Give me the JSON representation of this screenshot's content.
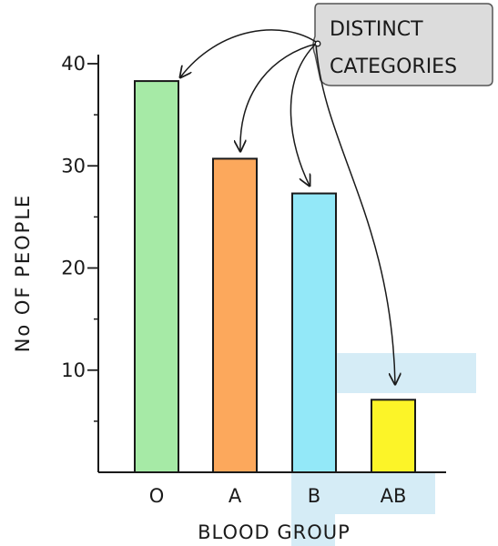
{
  "chart_data": {
    "type": "bar",
    "categories": [
      "O",
      "A",
      "B",
      "AB"
    ],
    "values": [
      38.3,
      30.7,
      27.3,
      7.1
    ],
    "colors": [
      "#a6eaa6",
      "#fca85c",
      "#93e8f8",
      "#fcf428"
    ],
    "xlabel": "BLOOD GROUP",
    "ylabel": "No OF PEOPLE",
    "ylim": [
      0,
      40
    ],
    "yticks": [
      10,
      20,
      30,
      40
    ],
    "grid": false,
    "annotation": {
      "lines": [
        "DISTINCT",
        "CATEGORIES"
      ],
      "points_to": [
        "O",
        "A",
        "B",
        "AB"
      ]
    }
  }
}
